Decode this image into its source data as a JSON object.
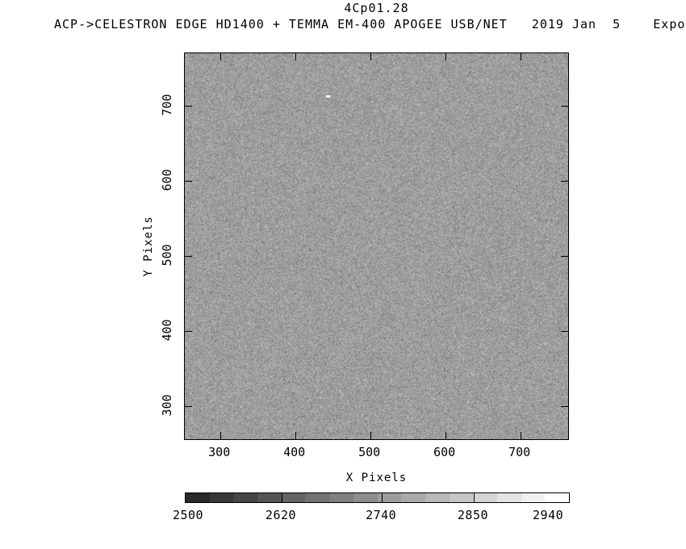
{
  "header": {
    "title": "4Cp01.28",
    "subtitle": "ACP->CELESTRON EDGE HD1400 + TEMMA EM-400 APOGEE USB/NET   2019 Jan  5    Expo"
  },
  "chart_data": {
    "type": "heatmap",
    "title": "4Cp01.28",
    "subtitle": "ACP->CELESTRON EDGE HD1400 + TEMMA EM-400 APOGEE USB/NET   2019 Jan  5    Expo",
    "xlabel": "X Pixels",
    "ylabel": "Y Pixels",
    "xlim": [
      253,
      766
    ],
    "ylim": [
      254,
      770
    ],
    "x_ticks": [
      300,
      400,
      500,
      600,
      700
    ],
    "y_ticks": [
      300,
      400,
      500,
      600,
      700
    ],
    "grid": false,
    "legend": "none",
    "image_content": "uniform fine-grained grayscale CCD noise field (flat/bias style frame), mean gray #A0A0A0, pixel values spanning roughly the colorbar range, single tiny white speck near data coords (410, 737)",
    "colorbar": {
      "orientation": "horizontal",
      "steps": 16,
      "dark_color": "#2a2a2a",
      "light_color": "#ffffff",
      "range_est": [
        2505,
        2966
      ],
      "tick_labels": [
        2500,
        2620,
        2740,
        2850,
        2940
      ],
      "crossing_ticks": [
        2620,
        2740,
        2850
      ]
    }
  }
}
